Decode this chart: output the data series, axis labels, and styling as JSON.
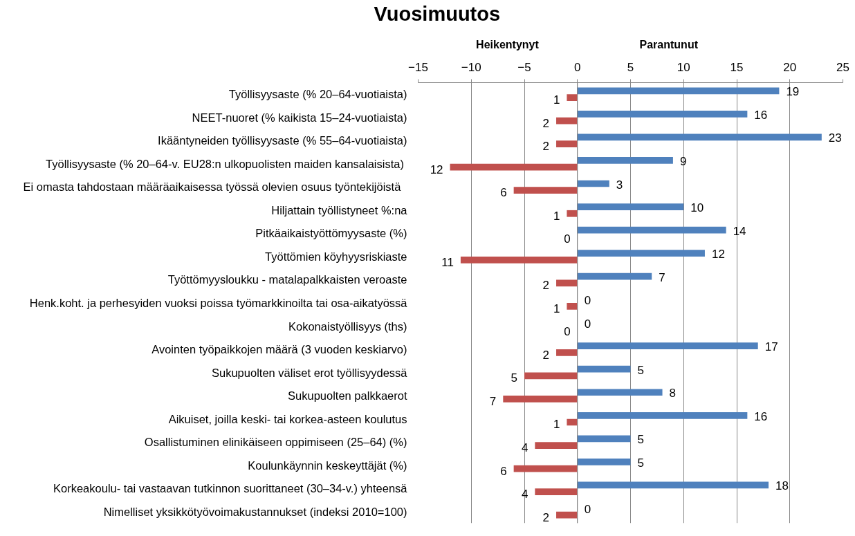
{
  "chart_data": {
    "type": "bar",
    "orientation": "horizontal",
    "title": "Vuosimuutos",
    "annotations": [
      "Heikentynyt",
      "Parantunut"
    ],
    "categories": [
      "Työllisyysaste (% 20–64-vuotiaista)",
      "NEET-nuoret (% kaikista 15–24-vuotiaista)",
      "Ikääntyneiden työllisyysaste (% 55–64-vuotiaista)",
      "Työllisyysaste (%  20–64-v. EU28:n ulkopuolisten maiden kansalaisista)",
      "Ei omasta tahdostaan määräaikaisessa työssä olevien  osuus  työntekijöistä",
      "Hiljattain työllistyneet %:na",
      "Pitkäaikaistyöttömyysaste (%)",
      "Työttömien köyhyysriskiaste",
      "Työttömyysloukku - matalapalkkaisten veroaste",
      "Henk.koht. ja perhesyiden vuoksi poissa työmarkkinoilta tai osa-aikatyössä",
      "Kokonaistyöllisyys (ths)",
      "Avointen työpaikkojen määrä (3 vuoden keskiarvo)",
      "Sukupuolten väliset erot työllisyydessä",
      "Sukupuolten palkkaerot",
      "Aikuiset, joilla keski- tai korkea-asteen koulutus",
      "Osallistuminen elinikäiseen oppimiseen (25–64) (%)",
      "Koulunkäynnin keskeyttäjät (%)",
      "Korkeakoulu- tai vastaavan tutkinnon suorittaneet (30–34-v.) yhteensä",
      "Nimelliset yksikkötyövoimakustannukset (indeksi 2010=100)"
    ],
    "series": [
      {
        "color": "#4f81bd",
        "values": [
          19,
          16,
          23,
          9,
          3,
          10,
          14,
          12,
          7,
          0,
          0,
          17,
          5,
          8,
          16,
          5,
          5,
          18,
          0
        ]
      },
      {
        "color": "#c0504d",
        "values": [
          1,
          2,
          2,
          12,
          6,
          1,
          0,
          11,
          2,
          1,
          0,
          2,
          5,
          7,
          1,
          4,
          6,
          4,
          2
        ],
        "base": [
          -1,
          -2,
          -2,
          -12,
          -6,
          -1,
          null,
          -11,
          -2,
          -1,
          null,
          -2,
          -5,
          -7,
          -1,
          -4,
          -6,
          -4,
          -2
        ]
      }
    ],
    "data_labels": true,
    "xlim": [
      -15,
      25
    ],
    "xticks": [
      -15,
      -10,
      -5,
      0,
      5,
      10,
      15,
      20,
      25
    ],
    "grid": "x"
  }
}
